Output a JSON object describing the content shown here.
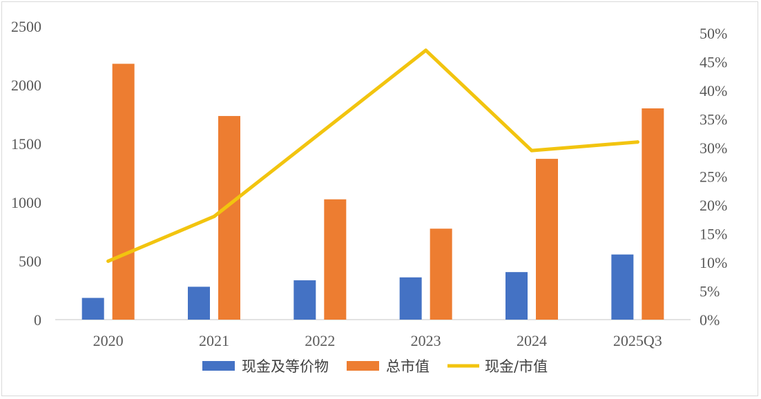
{
  "chart_data": {
    "type": "bar",
    "categories": [
      "2020",
      "2021",
      "2022",
      "2023",
      "2024",
      "2025Q3"
    ],
    "series": [
      {
        "name": "现金及等价物",
        "type": "bar",
        "axis": "left",
        "color": "#4472C4",
        "values": [
          185,
          280,
          335,
          360,
          405,
          555
        ]
      },
      {
        "name": "总市值",
        "type": "bar",
        "axis": "left",
        "color": "#ED7D31",
        "values": [
          2180,
          1735,
          1025,
          775,
          1370,
          1800
        ]
      },
      {
        "name": "现金/市值",
        "type": "line",
        "axis": "right",
        "color": "#F2C40F",
        "values": [
          0.102,
          0.18,
          0.325,
          0.47,
          0.295,
          0.31
        ]
      }
    ],
    "y_left": {
      "min": 0,
      "max": 2500,
      "ticks": [
        "0",
        "500",
        "1000",
        "1500",
        "2000",
        "2500"
      ]
    },
    "y_right": {
      "min": 0,
      "max": 0.5,
      "ticks": [
        "0%",
        "5%",
        "10%",
        "15%",
        "20%",
        "25%",
        "30%",
        "35%",
        "40%",
        "45%",
        "50%"
      ]
    },
    "legend_position": "bottom",
    "grid": false,
    "title": "",
    "xlabel": "",
    "ylabel": ""
  }
}
